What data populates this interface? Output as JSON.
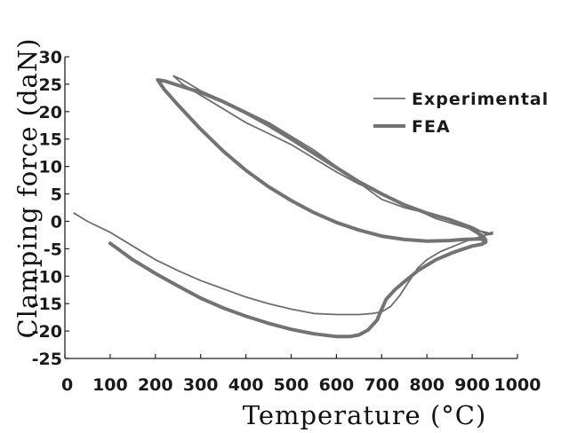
{
  "chart_data": {
    "type": "line",
    "title": "",
    "xlabel": "Temperature (°C)",
    "ylabel": "Clamping force (daN)",
    "xlim": [
      0,
      1000
    ],
    "ylim": [
      -25,
      30
    ],
    "xticks": [
      0,
      100,
      200,
      300,
      400,
      500,
      600,
      700,
      800,
      900,
      1000
    ],
    "yticks": [
      -25,
      -20,
      -15,
      -10,
      -5,
      0,
      5,
      10,
      15,
      20,
      25,
      30
    ],
    "xtick_labels": [
      "0",
      "100",
      "200",
      "300",
      "400",
      "500",
      "600",
      "700",
      "800",
      "900",
      "1000"
    ],
    "ytick_labels": [
      "-25",
      "-20",
      "-15",
      "-10",
      "-5",
      "0",
      "5",
      "10",
      "15",
      "20",
      "25",
      "30"
    ],
    "grid": false,
    "legend_position": "top-right",
    "series": [
      {
        "name": "Experimental",
        "color": "#6e6e6e",
        "style": "thin",
        "points": [
          [
            20,
            1.5
          ],
          [
            50,
            0
          ],
          [
            100,
            -2
          ],
          [
            150,
            -4.5
          ],
          [
            200,
            -7
          ],
          [
            250,
            -9
          ],
          [
            300,
            -10.8
          ],
          [
            350,
            -12.3
          ],
          [
            400,
            -13.8
          ],
          [
            450,
            -15
          ],
          [
            500,
            -16
          ],
          [
            550,
            -16.8
          ],
          [
            600,
            -17
          ],
          [
            650,
            -17
          ],
          [
            680,
            -16.8
          ],
          [
            700,
            -16.5
          ],
          [
            720,
            -15.5
          ],
          [
            740,
            -13.5
          ],
          [
            760,
            -11
          ],
          [
            780,
            -8.5
          ],
          [
            800,
            -7
          ],
          [
            830,
            -5.5
          ],
          [
            860,
            -4.5
          ],
          [
            890,
            -3.5
          ],
          [
            910,
            -3
          ],
          [
            930,
            -2.5
          ],
          [
            945,
            -2.3
          ],
          [
            930,
            -2
          ],
          [
            900,
            -1.5
          ],
          [
            860,
            -0.5
          ],
          [
            820,
            0.5
          ],
          [
            780,
            2
          ],
          [
            740,
            3.5
          ],
          [
            700,
            5
          ],
          [
            650,
            6.8
          ],
          [
            600,
            9
          ],
          [
            550,
            11.5
          ],
          [
            500,
            14
          ],
          [
            450,
            16
          ],
          [
            400,
            18
          ],
          [
            350,
            20.5
          ],
          [
            300,
            23
          ],
          [
            260,
            25
          ],
          [
            240,
            26.5
          ],
          [
            260,
            25.8
          ],
          [
            300,
            23.8
          ],
          [
            350,
            22
          ],
          [
            400,
            20
          ],
          [
            450,
            18
          ],
          [
            500,
            15.5
          ],
          [
            550,
            13
          ],
          [
            600,
            10
          ],
          [
            650,
            7
          ],
          [
            700,
            4
          ],
          [
            750,
            2.5
          ],
          [
            800,
            1.5
          ],
          [
            850,
            0.5
          ],
          [
            900,
            -1
          ],
          [
            930,
            -2.3
          ],
          [
            945,
            -2
          ]
        ]
      },
      {
        "name": "FEA",
        "color": "#737373",
        "style": "thick",
        "points": [
          [
            100,
            -4
          ],
          [
            150,
            -7
          ],
          [
            200,
            -9.5
          ],
          [
            250,
            -11.8
          ],
          [
            300,
            -14
          ],
          [
            350,
            -15.8
          ],
          [
            400,
            -17.3
          ],
          [
            450,
            -18.6
          ],
          [
            500,
            -19.7
          ],
          [
            550,
            -20.5
          ],
          [
            600,
            -21
          ],
          [
            630,
            -21
          ],
          [
            650,
            -20.7
          ],
          [
            670,
            -19.8
          ],
          [
            690,
            -18
          ],
          [
            700,
            -16
          ],
          [
            710,
            -14.2
          ],
          [
            730,
            -12.4
          ],
          [
            750,
            -11
          ],
          [
            780,
            -9
          ],
          [
            820,
            -7
          ],
          [
            860,
            -5.6
          ],
          [
            900,
            -4.5
          ],
          [
            920,
            -4.2
          ],
          [
            930,
            -3.8
          ],
          [
            920,
            -3.2
          ],
          [
            880,
            -3.3
          ],
          [
            850,
            -3.5
          ],
          [
            800,
            -3.6
          ],
          [
            750,
            -3.3
          ],
          [
            700,
            -2.7
          ],
          [
            650,
            -1.6
          ],
          [
            600,
            -0.2
          ],
          [
            550,
            1.6
          ],
          [
            500,
            3.8
          ],
          [
            450,
            6.3
          ],
          [
            400,
            9.3
          ],
          [
            350,
            12.8
          ],
          [
            300,
            16.8
          ],
          [
            250,
            21.2
          ],
          [
            220,
            24
          ],
          [
            205,
            25.8
          ],
          [
            220,
            25.6
          ],
          [
            250,
            24.8
          ],
          [
            300,
            23.5
          ],
          [
            350,
            21.8
          ],
          [
            400,
            19.8
          ],
          [
            450,
            17.5
          ],
          [
            500,
            15
          ],
          [
            550,
            12.4
          ],
          [
            600,
            9.8
          ],
          [
            650,
            7.2
          ],
          [
            700,
            5
          ],
          [
            750,
            3
          ],
          [
            800,
            1.5
          ],
          [
            850,
            0.3
          ],
          [
            890,
            -1
          ],
          [
            910,
            -2
          ],
          [
            925,
            -2.8
          ],
          [
            930,
            -3.4
          ]
        ]
      }
    ]
  }
}
